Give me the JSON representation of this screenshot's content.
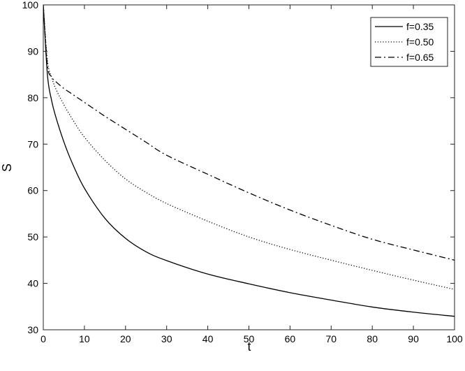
{
  "chart_data": {
    "type": "line",
    "title": "",
    "xlabel": "t",
    "ylabel": "S",
    "xlim": [
      0,
      100
    ],
    "ylim": [
      30,
      100
    ],
    "xticks": [
      0,
      10,
      20,
      30,
      40,
      50,
      60,
      70,
      80,
      90,
      100
    ],
    "yticks": [
      30,
      40,
      50,
      60,
      70,
      80,
      90,
      100
    ],
    "grid": false,
    "legend_position": "top-right",
    "x": [
      0,
      1,
      2,
      3,
      5,
      7,
      10,
      15,
      20,
      25,
      30,
      40,
      50,
      60,
      70,
      80,
      90,
      100
    ],
    "series": [
      {
        "name": "f=0.35",
        "line_style": "solid",
        "color": "#000000",
        "values": [
          100,
          85,
          79.5,
          76,
          70.5,
          66,
          60.5,
          54,
          49.7,
          46.8,
          44.9,
          42,
          39.9,
          38,
          36.4,
          34.9,
          33.8,
          32.9
        ]
      },
      {
        "name": "f=0.50",
        "line_style": "dotted",
        "color": "#000000",
        "values": [
          100,
          88,
          84.5,
          82,
          78.5,
          75.5,
          71.5,
          66.5,
          62.5,
          59.6,
          57.2,
          53.4,
          50,
          47.3,
          45,
          42.8,
          40.7,
          38.7
        ]
      },
      {
        "name": "f=0.65",
        "line_style": "dash-dot",
        "color": "#000000",
        "values": [
          100,
          87,
          84.5,
          83.5,
          82,
          80.8,
          79,
          76,
          73.2,
          70.4,
          67.6,
          63.5,
          59.5,
          55.8,
          52.5,
          49.5,
          47.2,
          45
        ]
      }
    ]
  }
}
